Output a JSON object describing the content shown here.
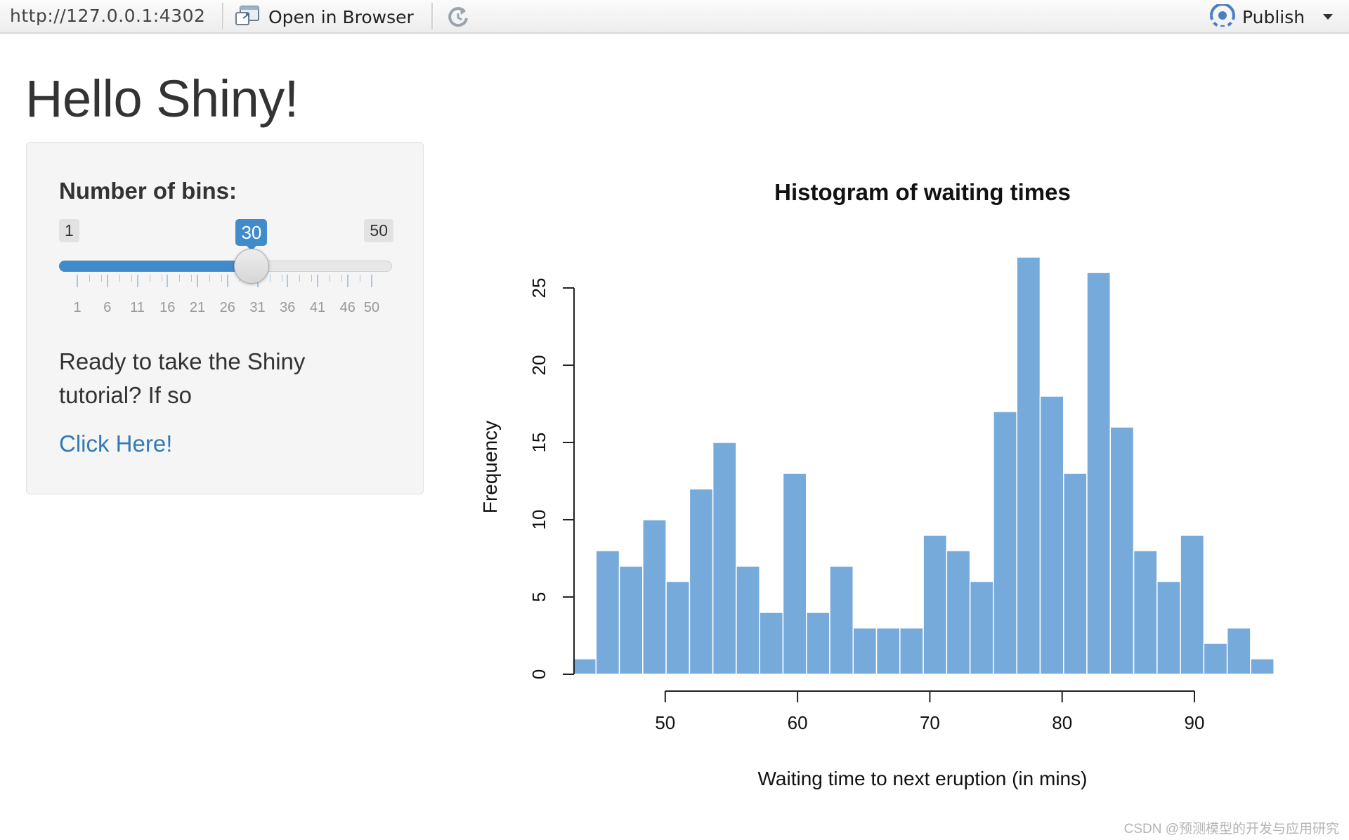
{
  "toolbar": {
    "url": "http://127.0.0.1:4302",
    "open_in_browser": "Open in Browser",
    "publish": "Publish"
  },
  "page": {
    "title": "Hello Shiny!"
  },
  "sidebar": {
    "bins_label": "Number of bins:",
    "slider": {
      "min": 1,
      "max": 50,
      "value": 30,
      "min_label": "1",
      "max_label": "50",
      "value_label": "30",
      "tick_labels": [
        "1",
        "6",
        "11",
        "16",
        "21",
        "26",
        "31",
        "36",
        "41",
        "46",
        "50"
      ]
    },
    "text": "Ready to take the Shiny tutorial? If so",
    "link": "Click Here!"
  },
  "chart_data": {
    "type": "bar",
    "title": "Histogram of waiting times",
    "xlabel": "Waiting time to next eruption (in mins)",
    "ylabel": "Frequency",
    "bin_start": 43,
    "bin_width": 1.767,
    "values": [
      1,
      8,
      7,
      10,
      6,
      12,
      15,
      7,
      4,
      13,
      4,
      7,
      3,
      3,
      3,
      9,
      8,
      6,
      17,
      27,
      18,
      13,
      26,
      16,
      8,
      6,
      9,
      2,
      3,
      1
    ],
    "xticks": [
      50,
      60,
      70,
      80,
      90
    ],
    "yticks": [
      0,
      5,
      10,
      15,
      20,
      25
    ],
    "xlim": [
      43,
      96
    ],
    "ylim": [
      0,
      27
    ],
    "bar_color": "#75aadb",
    "grid": false,
    "legend": "none"
  },
  "watermark": "CSDN @预测模型的开发与应用研究"
}
